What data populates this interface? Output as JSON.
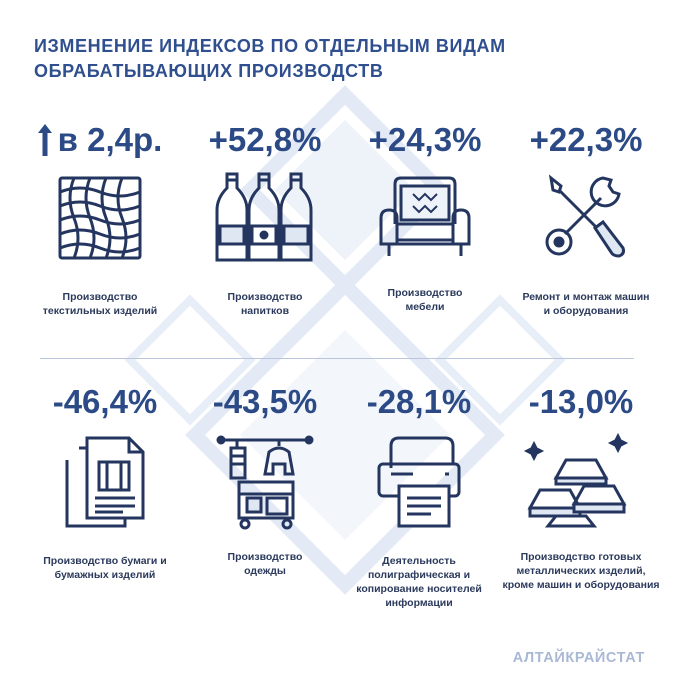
{
  "title": {
    "line1": "ИЗМЕНЕНИЕ ИНДЕКСОВ ПО ОТДЕЛЬНЫМ ВИДАМ",
    "line2": "ОБРАБАТЫВАЮЩИХ ПРОИЗВОДСТВ"
  },
  "colors": {
    "primary": "#2b4a86",
    "icon": "#24365f",
    "accent_light": "#dfe7f3",
    "source": "#a9b8d4"
  },
  "stats": [
    {
      "value": "в 2,4р.",
      "label": "Производство текстильных изделий",
      "icon": "textile-icon",
      "direction": "up"
    },
    {
      "value": "+52,8%",
      "label": "Производство напитков",
      "icon": "bottles-icon"
    },
    {
      "value": "+24,3%",
      "label": "Производство мебели",
      "icon": "armchair-icon"
    },
    {
      "value": "+22,3%",
      "label": "Ремонт и монтаж машин и оборудования",
      "icon": "wrench-screwdriver-icon"
    },
    {
      "value": "-46,4%",
      "label": "Производство бумаги и бумажных изделий",
      "icon": "paper-documents-icon"
    },
    {
      "value": "-43,5%",
      "label": "Производство одежды",
      "icon": "clothing-rack-icon"
    },
    {
      "value": "-28,1%",
      "label": "Деятельность полиграфическая и копирование носителей информации",
      "icon": "printer-icon"
    },
    {
      "value": "-13,0%",
      "label": "Производство готовых металлических изделий, кроме машин и оборудования",
      "icon": "metal-ingots-icon"
    }
  ],
  "source": "АЛТАЙКРАЙСТАТ"
}
